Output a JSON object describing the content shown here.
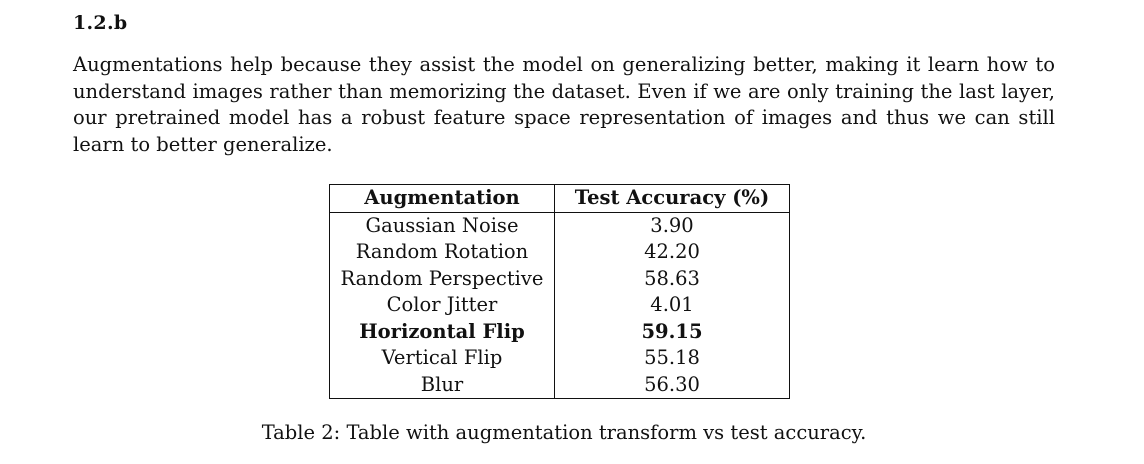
{
  "section": {
    "heading": "1.2.b",
    "paragraph": "Augmentations help because they assist the model on generalizing better, making it learn how to understand images rather than memorizing the dataset. Even if we are only training the last layer, our pretrained model has a robust feature space representation of images and thus we can still learn to better generalize."
  },
  "table": {
    "headers": [
      "Augmentation",
      "Test Accuracy (%)"
    ],
    "rows": [
      {
        "augmentation": "Gaussian Noise",
        "accuracy": "3.90",
        "bold": false
      },
      {
        "augmentation": "Random Rotation",
        "accuracy": "42.20",
        "bold": false
      },
      {
        "augmentation": "Random Perspective",
        "accuracy": "58.63",
        "bold": false
      },
      {
        "augmentation": "Color Jitter",
        "accuracy": "4.01",
        "bold": false
      },
      {
        "augmentation": "Horizontal Flip",
        "accuracy": "59.15",
        "bold": true
      },
      {
        "augmentation": "Vertical Flip",
        "accuracy": "55.18",
        "bold": false
      },
      {
        "augmentation": "Blur",
        "accuracy": "56.30",
        "bold": false
      }
    ],
    "caption": "Table 2: Table with augmentation transform vs test accuracy."
  }
}
